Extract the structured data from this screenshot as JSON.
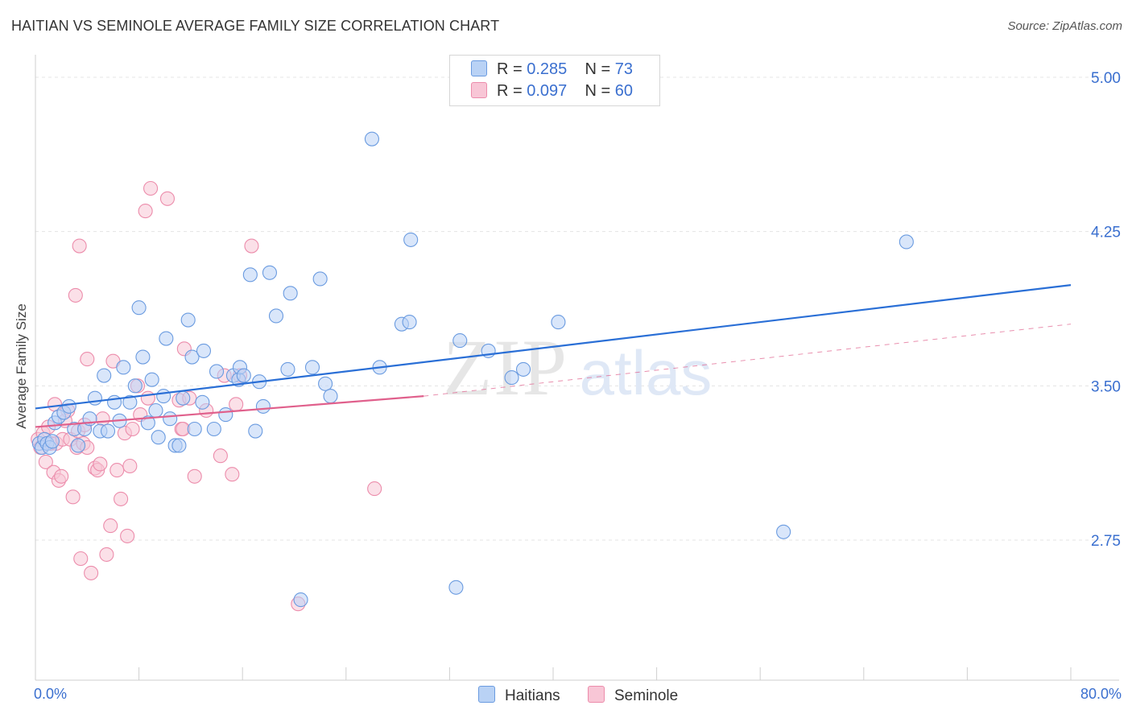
{
  "title": "HAITIAN VS SEMINOLE AVERAGE FAMILY SIZE CORRELATION CHART",
  "source": "Source: ZipAtlas.com",
  "watermark": {
    "zip": "ZIP",
    "atlas": "atlas"
  },
  "legend": {
    "r_label": "R =",
    "n_label": "N =",
    "haitians": {
      "r": "0.285",
      "n": "73"
    },
    "seminole": {
      "r": "0.097",
      "n": "60"
    }
  },
  "colors": {
    "haitians_fill": "#b9d2f5",
    "haitians_stroke": "#6a9be0",
    "haitians_line": "#2a6fd6",
    "seminole_fill": "#f8c6d6",
    "seminole_stroke": "#ec8cab",
    "seminole_line": "#e0608c",
    "axis_text": "#3a6fcf"
  },
  "chart_data": {
    "type": "scatter",
    "title": "HAITIAN VS SEMINOLE AVERAGE FAMILY SIZE CORRELATION CHART",
    "xlabel": "",
    "ylabel": "Average Family Size",
    "x_tick_labels": [
      "0.0%",
      "80.0%"
    ],
    "y_ticks": [
      2.75,
      3.5,
      4.25,
      5.0
    ],
    "y_tick_labels": [
      "2.75",
      "3.50",
      "4.25",
      "5.00"
    ],
    "xlim": [
      0,
      80
    ],
    "ylim": [
      2.0,
      5.1
    ],
    "grid": true,
    "legend_position": "top-center",
    "series": [
      {
        "name": "Haitians",
        "points": [
          [
            0.3,
            3.22
          ],
          [
            0.5,
            3.2
          ],
          [
            0.7,
            3.24
          ],
          [
            0.9,
            3.22
          ],
          [
            1.1,
            3.2
          ],
          [
            1.3,
            3.23
          ],
          [
            1.5,
            3.32
          ],
          [
            1.8,
            3.35
          ],
          [
            2.2,
            3.37
          ],
          [
            2.6,
            3.4
          ],
          [
            3.0,
            3.29
          ],
          [
            3.3,
            3.21
          ],
          [
            3.8,
            3.29
          ],
          [
            4.2,
            3.34
          ],
          [
            4.6,
            3.44
          ],
          [
            5.0,
            3.28
          ],
          [
            5.3,
            3.55
          ],
          [
            5.6,
            3.28
          ],
          [
            6.1,
            3.42
          ],
          [
            6.5,
            3.33
          ],
          [
            6.8,
            3.59
          ],
          [
            7.3,
            3.42
          ],
          [
            7.7,
            3.5
          ],
          [
            8.0,
            3.88
          ],
          [
            8.3,
            3.64
          ],
          [
            8.7,
            3.32
          ],
          [
            9.0,
            3.53
          ],
          [
            9.3,
            3.38
          ],
          [
            9.5,
            3.25
          ],
          [
            9.9,
            3.45
          ],
          [
            10.1,
            3.73
          ],
          [
            10.4,
            3.34
          ],
          [
            10.8,
            3.21
          ],
          [
            11.1,
            3.21
          ],
          [
            11.4,
            3.44
          ],
          [
            11.8,
            3.82
          ],
          [
            12.1,
            3.64
          ],
          [
            12.3,
            3.29
          ],
          [
            12.9,
            3.42
          ],
          [
            13.0,
            3.67
          ],
          [
            13.8,
            3.29
          ],
          [
            14.0,
            3.57
          ],
          [
            14.7,
            3.36
          ],
          [
            15.3,
            3.55
          ],
          [
            15.7,
            3.53
          ],
          [
            15.8,
            3.59
          ],
          [
            16.1,
            3.55
          ],
          [
            16.6,
            4.04
          ],
          [
            17.0,
            3.28
          ],
          [
            17.3,
            3.52
          ],
          [
            17.6,
            3.4
          ],
          [
            18.1,
            4.05
          ],
          [
            18.6,
            3.84
          ],
          [
            19.7,
            3.95
          ],
          [
            19.5,
            3.58
          ],
          [
            20.5,
            2.46
          ],
          [
            21.4,
            3.59
          ],
          [
            22.0,
            4.02
          ],
          [
            22.4,
            3.51
          ],
          [
            22.8,
            3.45
          ],
          [
            26.0,
            4.7
          ],
          [
            26.6,
            3.59
          ],
          [
            28.3,
            3.8
          ],
          [
            28.9,
            3.81
          ],
          [
            29.0,
            4.21
          ],
          [
            32.5,
            2.52
          ],
          [
            32.8,
            3.72
          ],
          [
            35.0,
            3.67
          ],
          [
            36.8,
            3.54
          ],
          [
            37.7,
            3.58
          ],
          [
            40.4,
            3.81
          ],
          [
            57.8,
            2.79
          ],
          [
            67.3,
            4.2
          ]
        ],
        "trend": [
          [
            0,
            3.39
          ],
          [
            80,
            3.99
          ]
        ]
      },
      {
        "name": "Seminole",
        "points": [
          [
            0.2,
            3.24
          ],
          [
            0.4,
            3.2
          ],
          [
            0.6,
            3.27
          ],
          [
            0.8,
            3.13
          ],
          [
            1.0,
            3.3
          ],
          [
            1.2,
            3.22
          ],
          [
            1.4,
            3.08
          ],
          [
            1.5,
            3.41
          ],
          [
            1.6,
            3.22
          ],
          [
            1.8,
            3.04
          ],
          [
            2.0,
            3.06
          ],
          [
            2.1,
            3.24
          ],
          [
            2.3,
            3.33
          ],
          [
            2.5,
            3.38
          ],
          [
            2.7,
            3.24
          ],
          [
            2.9,
            2.96
          ],
          [
            3.1,
            3.94
          ],
          [
            3.2,
            3.2
          ],
          [
            3.3,
            3.28
          ],
          [
            3.4,
            4.18
          ],
          [
            3.5,
            2.66
          ],
          [
            3.7,
            3.22
          ],
          [
            3.8,
            3.31
          ],
          [
            4.0,
            3.63
          ],
          [
            4.3,
            2.59
          ],
          [
            4.6,
            3.1
          ],
          [
            4.8,
            3.09
          ],
          [
            5.0,
            3.12
          ],
          [
            5.2,
            3.34
          ],
          [
            5.5,
            2.68
          ],
          [
            5.8,
            2.82
          ],
          [
            6.0,
            3.62
          ],
          [
            6.3,
            3.09
          ],
          [
            6.6,
            2.95
          ],
          [
            6.9,
            3.27
          ],
          [
            7.1,
            2.77
          ],
          [
            7.3,
            3.11
          ],
          [
            7.5,
            3.29
          ],
          [
            7.9,
            3.5
          ],
          [
            8.1,
            3.36
          ],
          [
            8.5,
            4.35
          ],
          [
            8.7,
            3.44
          ],
          [
            8.9,
            4.46
          ],
          [
            10.2,
            4.41
          ],
          [
            11.3,
            3.29
          ],
          [
            11.4,
            3.29
          ],
          [
            11.1,
            3.43
          ],
          [
            11.5,
            3.68
          ],
          [
            11.9,
            3.44
          ],
          [
            12.3,
            3.06
          ],
          [
            13.2,
            3.38
          ],
          [
            14.3,
            3.16
          ],
          [
            14.6,
            3.55
          ],
          [
            15.2,
            3.07
          ],
          [
            15.5,
            3.41
          ],
          [
            15.8,
            3.55
          ],
          [
            16.7,
            4.18
          ],
          [
            20.3,
            2.44
          ],
          [
            26.2,
            3.0
          ],
          [
            4.0,
            3.2
          ]
        ],
        "trend": [
          [
            0,
            3.3
          ],
          [
            30,
            3.45
          ]
        ],
        "trend_dashed": [
          [
            30,
            3.45
          ],
          [
            80,
            3.8
          ]
        ]
      }
    ]
  },
  "bottom_legend": [
    "Haitians",
    "Seminole"
  ]
}
